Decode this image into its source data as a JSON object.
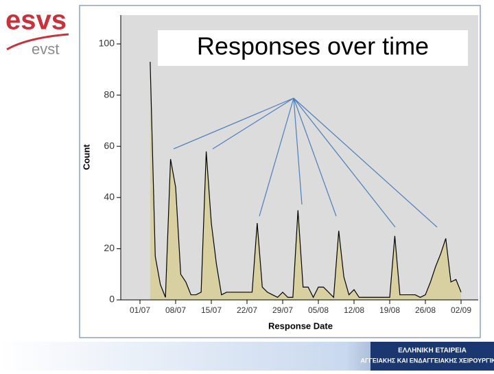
{
  "logo": {
    "main": "esvs",
    "sub": "evst"
  },
  "footer": {
    "line1": "ΕΛΛΗΝΙΚΗ ΕΤΑΙΡΕΙΑ",
    "line2": "ΑΓΓΕΙΑΚΗΣ ΚΑΙ ΕΝΔΑΓΓΕΙΑΚΗΣ ΧΕΙΡΟΥΡΓΙΚΗΣ"
  },
  "chart_data": {
    "type": "area",
    "title": "Responses over time",
    "x_label": "Response Date",
    "y_label": "Count",
    "categories": [
      "01/07",
      null,
      null,
      null,
      null,
      null,
      null,
      "08/07",
      null,
      null,
      null,
      null,
      null,
      null,
      "15/07",
      null,
      null,
      null,
      null,
      null,
      null,
      "22/07",
      null,
      null,
      null,
      null,
      null,
      null,
      "29/07",
      null,
      null,
      null,
      null,
      null,
      null,
      "05/08",
      null,
      null,
      null,
      null,
      null,
      null,
      "12/08",
      null,
      null,
      null,
      null,
      null,
      null,
      "19/08",
      null,
      null,
      null,
      null,
      null,
      null,
      "26/08",
      null,
      null,
      null,
      null,
      null,
      null,
      "02/09"
    ],
    "values": [
      null,
      null,
      93,
      17,
      6,
      1,
      55,
      44,
      10,
      7,
      2,
      2,
      3,
      58,
      30,
      14,
      2,
      3,
      3,
      3,
      3,
      3,
      3,
      30,
      5,
      3,
      2,
      1,
      3,
      1,
      1,
      35,
      5,
      5,
      1,
      5,
      5,
      3,
      1,
      27,
      9,
      2,
      4,
      1,
      1,
      1,
      1,
      1,
      1,
      1,
      25,
      2,
      2,
      2,
      2,
      1,
      2,
      7,
      13,
      18,
      24,
      7,
      8,
      3
    ],
    "color": "#d8d0a0",
    "ylim": [
      0,
      100
    ],
    "yticks": [
      0,
      20,
      40,
      60,
      80,
      100
    ]
  }
}
